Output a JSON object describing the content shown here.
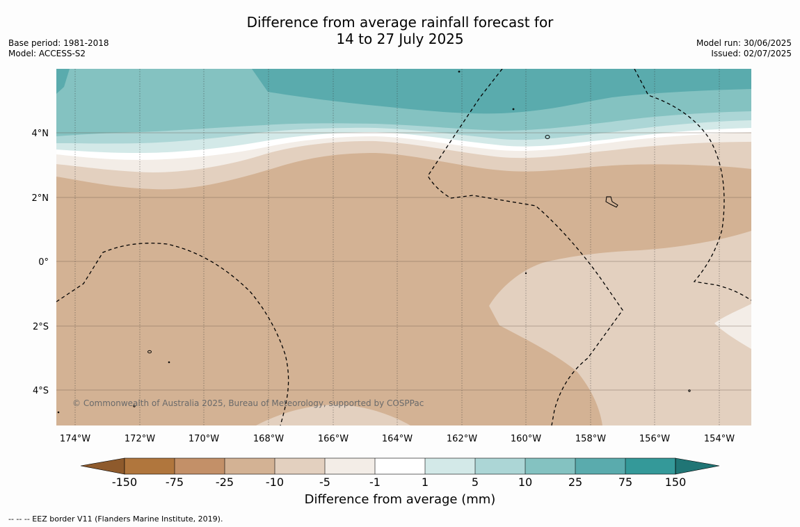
{
  "title": {
    "line1": "Difference from average rainfall forecast for",
    "line2": "14 to 27 July 2025"
  },
  "meta_left": {
    "base_period": "Base period: 1981-2018",
    "model": "Model: ACCESS-S2"
  },
  "meta_right": {
    "model_run": "Model run: 30/06/2025",
    "issued": "Issued: 02/07/2025"
  },
  "map": {
    "lon_labels": [
      "174°W",
      "172°W",
      "170°W",
      "168°W",
      "166°W",
      "164°W",
      "162°W",
      "160°W",
      "158°W",
      "156°W",
      "154°W"
    ],
    "lat_labels": [
      "4°N",
      "2°N",
      "0°",
      "2°S",
      "4°S"
    ],
    "copyright": "© Commonwealth of Australia 2025, Bureau of Meteorology, supported by COSPPac",
    "colors": {
      "dry_extreme": "#8e5a2c",
      "dry_150_75": "#b0763d",
      "dry_75_25": "#c39068",
      "dry_25_10": "#d3b294",
      "dry_10_5": "#e3d0bf",
      "dry_5_1": "#f3ede7",
      "neutral": "#ffffff",
      "wet_1_5": "#d3e9e8",
      "wet_5_10": "#acd6d6",
      "wet_10_25": "#84c2c1",
      "wet_25_75": "#5aabad",
      "wet_75_150": "#349999",
      "wet_extreme": "#207575"
    }
  },
  "colorbar": {
    "ticks": [
      "-150",
      "-75",
      "-25",
      "-10",
      "-5",
      "-1",
      "1",
      "5",
      "10",
      "25",
      "75",
      "150"
    ],
    "label": "Difference from average (mm)"
  },
  "footnote": "--  --  -- EEZ border V11 (Flanders Marine Institute, 2019)."
}
